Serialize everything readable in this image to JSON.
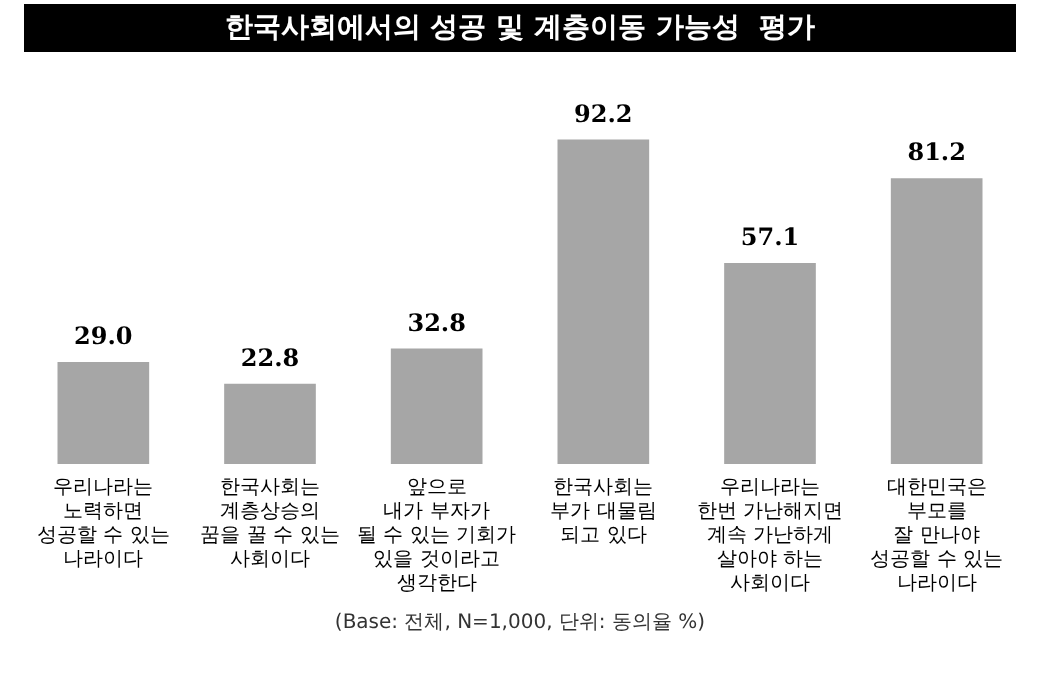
{
  "chart_data": {
    "type": "bar",
    "title": "한국사회에서의 성공 및 계층이동 가능성  평가",
    "categories": [
      "우리나라는\n노력하면\n성공할 수 있는\n나라이다",
      "한국사회는\n계층상승의\n꿈을 꿀 수 있는\n사회이다",
      "앞으로\n내가 부자가\n될 수 있는 기회가\n있을 것이라고\n생각한다",
      "한국사회는\n부가 대물림\n되고 있다",
      "우리나라는\n한번 가난해지면\n계속 가난하게\n살아야 하는\n사회이다",
      "대한민국은\n부모를\n잘 만나야\n성공할 수 있는\n나라이다"
    ],
    "values": [
      29.0,
      22.8,
      32.8,
      92.2,
      57.1,
      81.2
    ],
    "value_labels": [
      "29.0",
      "22.8",
      "32.8",
      "92.2",
      "57.1",
      "81.2"
    ],
    "color": "#a6a6a6",
    "grid": false,
    "legend": false,
    "tick_labels": "x",
    "annotations": [
      "(Base: 전체, N=1,000, 단위: 동의율 %)"
    ]
  }
}
